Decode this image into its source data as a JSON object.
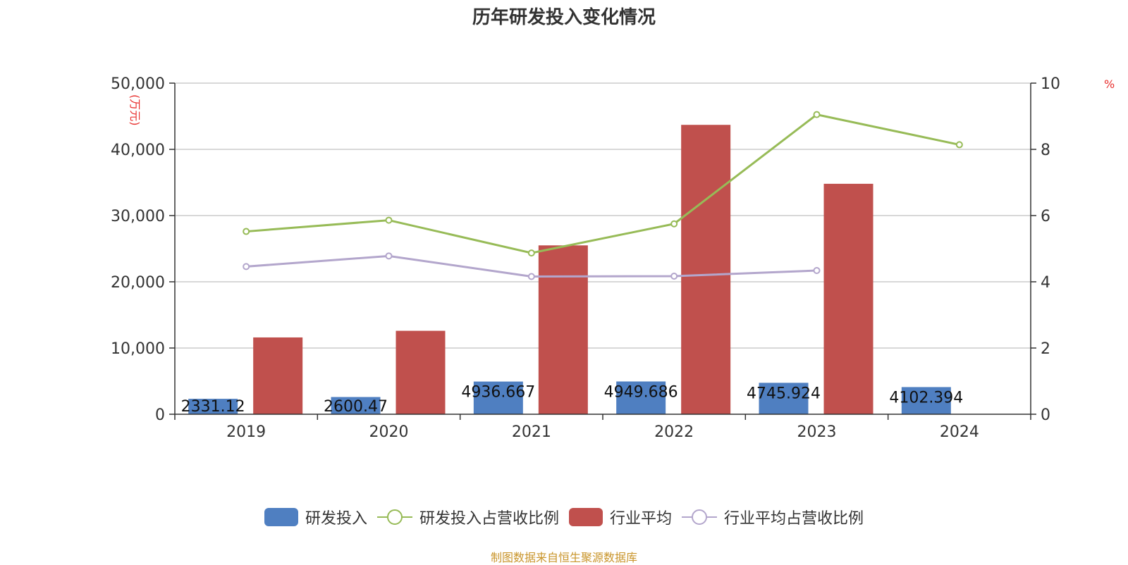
{
  "title": "历年研发投入变化情况",
  "source": "制图数据来自恒生聚源数据库",
  "chart_data": {
    "type": "bar",
    "categories": [
      "2019",
      "2020",
      "2021",
      "2022",
      "2023",
      "2024"
    ],
    "left_axis": {
      "unit_label": "(万元)",
      "ylim": [
        0,
        50000
      ],
      "ticks": [
        "0",
        "10,000",
        "20,000",
        "30,000",
        "40,000",
        "50,000"
      ],
      "tick_values": [
        0,
        10000,
        20000,
        30000,
        40000,
        50000
      ]
    },
    "right_axis": {
      "unit_label": "%",
      "ylim": [
        0,
        10
      ],
      "ticks": [
        "0",
        "2",
        "4",
        "6",
        "8",
        "10"
      ],
      "tick_values": [
        0,
        2,
        4,
        6,
        8,
        10
      ]
    },
    "grid": true,
    "legend_position": "bottom",
    "series": [
      {
        "name": "研发投入",
        "type": "bar",
        "axis": "left",
        "color": "#4f7fc1",
        "values": [
          2331.12,
          2600.47,
          4936.667,
          4949.686,
          4745.924,
          4102.394
        ],
        "labels": [
          "2331.12",
          "2600.47",
          "4936.667",
          "4949.686",
          "4745.924",
          "4102.394"
        ]
      },
      {
        "name": "研发投入占营收比例",
        "type": "line",
        "axis": "right",
        "color": "#97bb57",
        "values": [
          5.52,
          5.86,
          4.87,
          5.75,
          9.05,
          8.14
        ]
      },
      {
        "name": "行业平均",
        "type": "bar",
        "axis": "left",
        "color": "#c0504d",
        "values": [
          11600,
          12600,
          25500,
          43700,
          34800,
          null
        ]
      },
      {
        "name": "行业平均占营收比例",
        "type": "line",
        "axis": "right",
        "color": "#b3a6cc",
        "values": [
          4.46,
          4.78,
          4.16,
          4.17,
          4.34,
          null
        ]
      }
    ]
  }
}
